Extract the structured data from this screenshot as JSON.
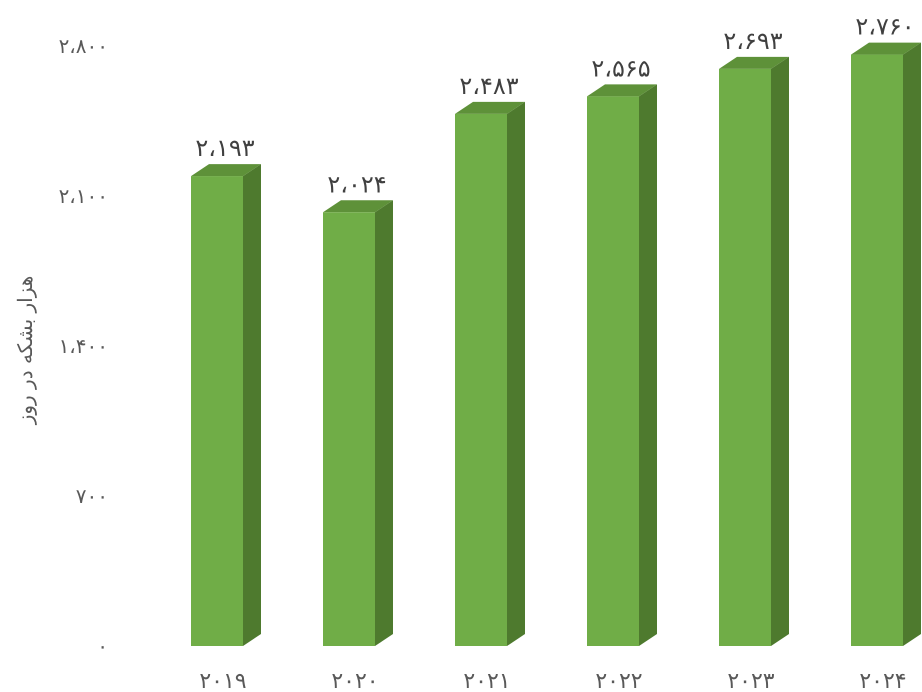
{
  "chart_data": {
    "type": "bar",
    "categories": [
      "۲۰۱۹",
      "۲۰۲۰",
      "۲۰۲۱",
      "۲۰۲۲",
      "۲۰۲۳",
      "۲۰۲۴"
    ],
    "values": [
      2193,
      2024,
      2483,
      2565,
      2693,
      2760
    ],
    "value_labels": [
      "۲،۱۹۳",
      "۲،۰۲۴",
      "۲،۴۸۳",
      "۲،۵۶۵",
      "۲،۶۹۳",
      "۲،۷۶۰"
    ],
    "yticks": [
      0,
      700,
      1400,
      2100,
      2800
    ],
    "ytick_labels": [
      "۰",
      "۷۰۰",
      "۱،۴۰۰",
      "۲،۱۰۰",
      "۲،۸۰۰"
    ],
    "ylim": [
      0,
      2800
    ],
    "ylabel": "هزار بشکه در روز",
    "xlabel": "",
    "title": "",
    "grid": false,
    "bar_style": "3d",
    "colors": {
      "bar_front": "#70AD47",
      "bar_side": "#4E7A2E",
      "bar_top": "#5E9139"
    }
  }
}
